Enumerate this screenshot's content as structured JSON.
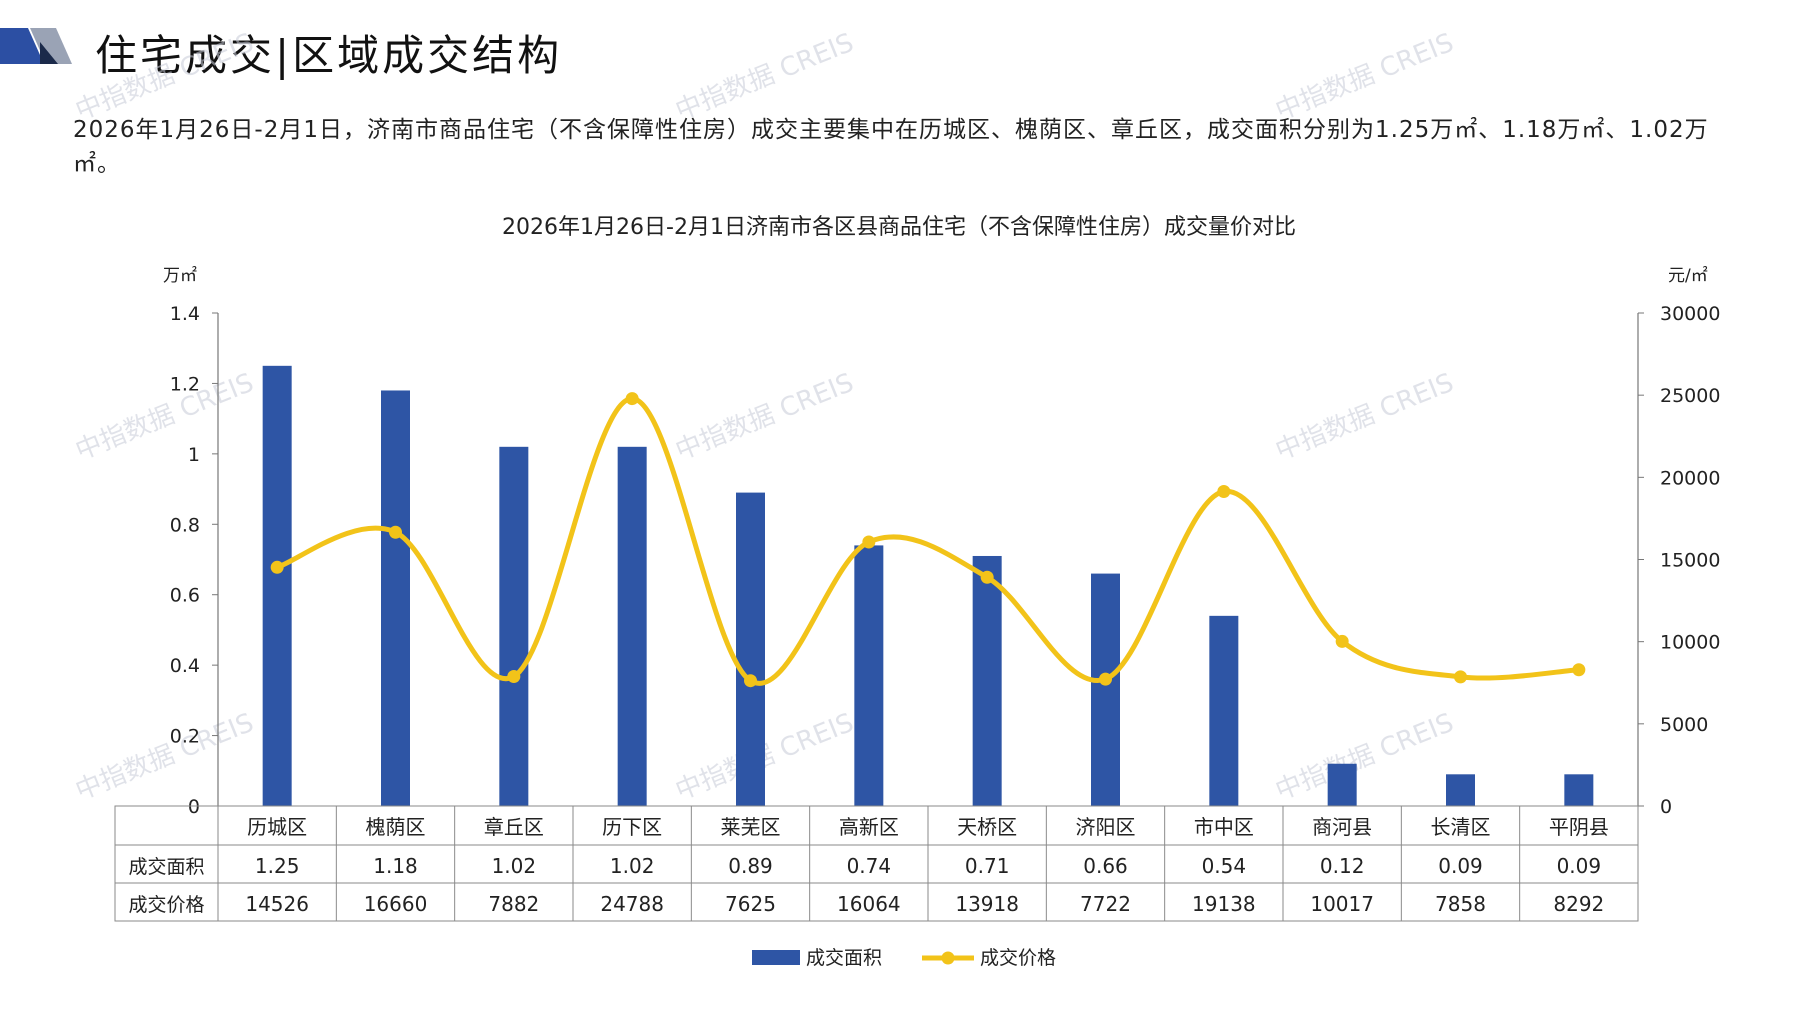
{
  "header": {
    "title": "住宅成交|区域成交结构",
    "intro": "2026年1月26日-2月1日，济南市商品住宅（不含保障性住房）成交主要集中在历城区、槐荫区、章丘区，成交面积分别为1.25万㎡、1.18万㎡、1.02万㎡。",
    "watermark": "中指数据 CREIS"
  },
  "colors": {
    "bar": "#2E55A5",
    "line": "#F2C319",
    "deco_blue": "#2C4FA3",
    "deco_gray": "#9AA3B5"
  },
  "chart_data": {
    "type": "bar",
    "title": "2026年1月26日-2月1日济南市各区县商品住宅（不含保障性住房）成交量价对比",
    "y_left_unit": "万㎡",
    "y_right_unit": "元/㎡",
    "y_left_range": [
      0,
      1.4
    ],
    "y_left_ticks": [
      "0",
      "0.2",
      "0.4",
      "0.6",
      "0.8",
      "1",
      "1.2",
      "1.4"
    ],
    "y_right_range": [
      0,
      30000
    ],
    "y_right_ticks": [
      "0",
      "5000",
      "10000",
      "15000",
      "20000",
      "25000",
      "30000"
    ],
    "categories": [
      "历城区",
      "槐荫区",
      "章丘区",
      "历下区",
      "莱芜区",
      "高新区",
      "天桥区",
      "济阳区",
      "市中区",
      "商河县",
      "长清区",
      "平阴县"
    ],
    "series": [
      {
        "name": "成交面积",
        "type": "bar",
        "axis": "left",
        "values": [
          1.25,
          1.18,
          1.02,
          1.02,
          0.89,
          0.74,
          0.71,
          0.66,
          0.54,
          0.12,
          0.09,
          0.09
        ],
        "labels": [
          "1.25",
          "1.18",
          "1.02",
          "1.02",
          "0.89",
          "0.74",
          "0.71",
          "0.66",
          "0.54",
          "0.12",
          "0.09",
          "0.09"
        ]
      },
      {
        "name": "成交价格",
        "type": "line",
        "axis": "right",
        "smooth": true,
        "values": [
          14526,
          16660,
          7882,
          24788,
          7625,
          16064,
          13918,
          7722,
          19138,
          10017,
          7858,
          8292
        ],
        "labels": [
          "14526",
          "16660",
          "7882",
          "24788",
          "7625",
          "16064",
          "13918",
          "7722",
          "19138",
          "10017",
          "7858",
          "8292"
        ]
      }
    ],
    "legend_position": "bottom",
    "data_table": true
  }
}
